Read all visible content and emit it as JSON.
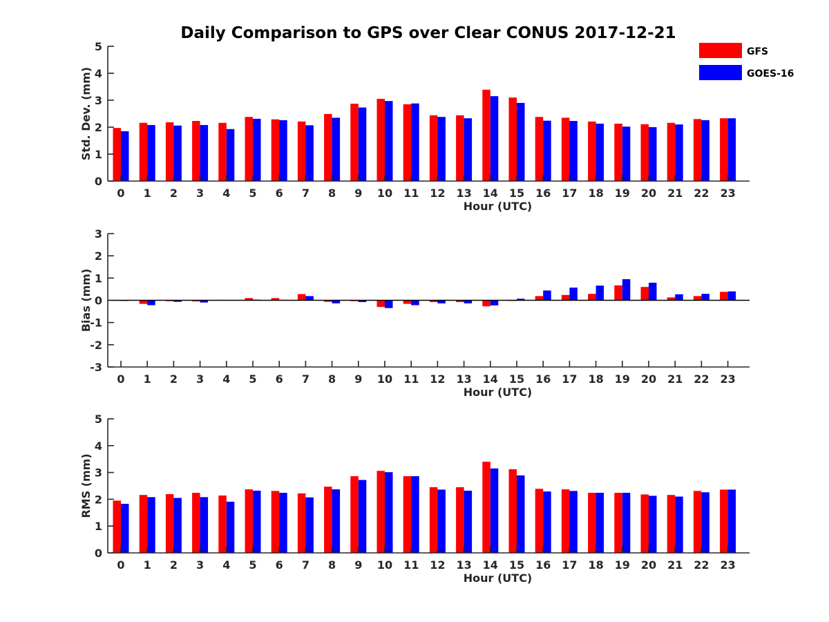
{
  "title": "Daily Comparison to GPS over Clear CONUS 2017-12-21",
  "colors": {
    "GFS": "#ff0000",
    "GOES-16": "#0000ff",
    "axis": "#262626"
  },
  "legend": {
    "placement": "top-right",
    "items": [
      "GFS",
      "GOES-16"
    ]
  },
  "chart_data": [
    {
      "type": "bar",
      "xlabel": "Hour (UTC)",
      "ylabel": "Std. Dev. (mm)",
      "ylim": [
        0,
        5
      ],
      "yticks": [
        "0",
        "1",
        "2",
        "3",
        "4",
        "5"
      ],
      "categories": [
        "0",
        "1",
        "2",
        "3",
        "4",
        "5",
        "6",
        "7",
        "8",
        "9",
        "10",
        "11",
        "12",
        "13",
        "14",
        "15",
        "16",
        "17",
        "18",
        "19",
        "20",
        "21",
        "22",
        "23"
      ],
      "series": [
        {
          "name": "GFS",
          "values": [
            1.97,
            2.16,
            2.18,
            2.23,
            2.16,
            2.38,
            2.29,
            2.21,
            2.49,
            2.87,
            3.05,
            2.85,
            2.44,
            2.44,
            3.39,
            3.1,
            2.38,
            2.35,
            2.21,
            2.13,
            2.11,
            2.16,
            2.3,
            2.33
          ]
        },
        {
          "name": "GOES-16",
          "values": [
            1.85,
            2.08,
            2.06,
            2.08,
            1.93,
            2.31,
            2.26,
            2.07,
            2.35,
            2.73,
            2.97,
            2.88,
            2.38,
            2.33,
            3.15,
            2.9,
            2.24,
            2.23,
            2.13,
            2.02,
            2.0,
            2.1,
            2.26,
            2.33
          ]
        }
      ]
    },
    {
      "type": "bar",
      "xlabel": "Hour (UTC)",
      "ylabel": "Bias (mm)",
      "ylim": [
        -3,
        3
      ],
      "yticks": [
        "-3",
        "-2",
        "-1",
        "0",
        "1",
        "2",
        "3"
      ],
      "categories": [
        "0",
        "1",
        "2",
        "3",
        "4",
        "5",
        "6",
        "7",
        "8",
        "9",
        "10",
        "11",
        "12",
        "13",
        "14",
        "15",
        "16",
        "17",
        "18",
        "19",
        "20",
        "21",
        "22",
        "23"
      ],
      "series": [
        {
          "name": "GFS",
          "values": [
            -0.02,
            -0.16,
            -0.04,
            -0.05,
            0.02,
            0.1,
            0.1,
            0.28,
            -0.07,
            -0.04,
            -0.3,
            -0.16,
            -0.08,
            -0.08,
            -0.27,
            -0.03,
            0.19,
            0.24,
            0.29,
            0.67,
            0.6,
            0.13,
            0.19,
            0.38
          ]
        },
        {
          "name": "GOES-16",
          "values": [
            -0.03,
            -0.22,
            -0.07,
            -0.1,
            0.01,
            0.03,
            0.02,
            0.19,
            -0.14,
            -0.08,
            -0.35,
            -0.22,
            -0.14,
            -0.14,
            -0.23,
            0.07,
            0.44,
            0.57,
            0.66,
            0.95,
            0.79,
            0.27,
            0.29,
            0.4
          ]
        }
      ]
    },
    {
      "type": "bar",
      "xlabel": "Hour (UTC)",
      "ylabel": "RMS (mm)",
      "ylim": [
        0,
        5
      ],
      "yticks": [
        "0",
        "1",
        "2",
        "3",
        "4",
        "5"
      ],
      "categories": [
        "0",
        "1",
        "2",
        "3",
        "4",
        "5",
        "6",
        "7",
        "8",
        "9",
        "10",
        "11",
        "12",
        "13",
        "14",
        "15",
        "16",
        "17",
        "18",
        "19",
        "20",
        "21",
        "22",
        "23"
      ],
      "series": [
        {
          "name": "GFS",
          "values": [
            1.95,
            2.16,
            2.19,
            2.24,
            2.14,
            2.37,
            2.31,
            2.22,
            2.47,
            2.86,
            3.06,
            2.86,
            2.45,
            2.45,
            3.4,
            3.12,
            2.39,
            2.37,
            2.24,
            2.24,
            2.18,
            2.16,
            2.31,
            2.36
          ]
        },
        {
          "name": "GOES-16",
          "values": [
            1.83,
            2.08,
            2.05,
            2.08,
            1.91,
            2.32,
            2.24,
            2.07,
            2.37,
            2.72,
            3.01,
            2.86,
            2.36,
            2.32,
            3.15,
            2.89,
            2.29,
            2.31,
            2.24,
            2.24,
            2.13,
            2.1,
            2.26,
            2.36
          ]
        }
      ]
    }
  ]
}
